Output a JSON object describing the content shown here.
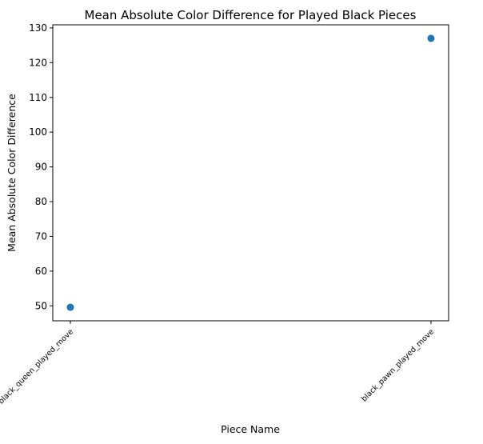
{
  "chart_data": {
    "type": "scatter",
    "title": "Mean Absolute Color Difference for Played Black Pieces",
    "xlabel": "Piece Name",
    "ylabel": "Mean Absolute Color Difference",
    "categories": [
      "black_queen_played_move",
      "black_pawn_played_move"
    ],
    "values": [
      49.6,
      127.0
    ],
    "ylim": [
      45.7,
      130.9
    ],
    "yticks": [
      50,
      60,
      70,
      80,
      90,
      100,
      110,
      120,
      130
    ],
    "grid": false,
    "legend": "none",
    "marker_color": "#1f77b4"
  }
}
